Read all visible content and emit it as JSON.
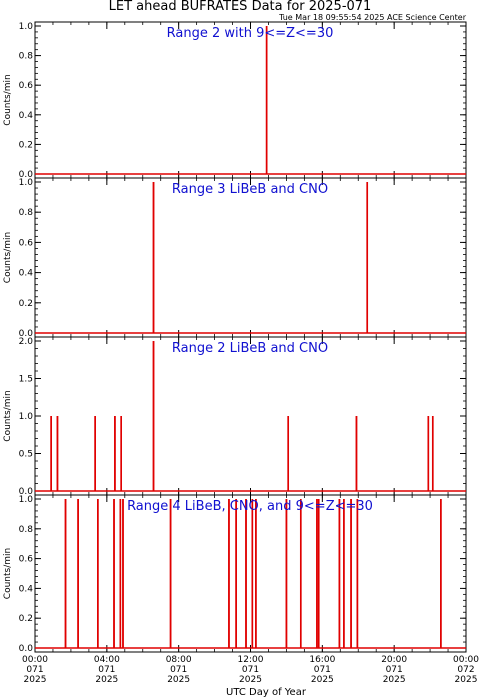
{
  "figure": {
    "title": "LET ahead BUFRATES Data for 2025-071",
    "timestamp": "Tue Mar 18 09:55:54 2025 ACE Science Center",
    "xlabel": "UTC Day of Year",
    "series_color": "#e00000",
    "title_color": "#1010d0"
  },
  "chart_data": [
    {
      "type": "line",
      "title": "Range 2 with 9<=Z<=30",
      "ylabel": "Counts/min",
      "xlim": [
        0,
        24
      ],
      "ylim": [
        0,
        1.0
      ],
      "yticks": [
        "0.0",
        "0.2",
        "0.4",
        "0.6",
        "0.8",
        "1.0"
      ],
      "x_unit": "hours UTC",
      "spikes": [
        {
          "x": 12.9,
          "y": 1.0
        }
      ]
    },
    {
      "type": "line",
      "title": "Range 3 LiBeB and CNO",
      "ylabel": "Counts/min",
      "xlim": [
        0,
        24
      ],
      "ylim": [
        0,
        1.0
      ],
      "yticks": [
        "0.0",
        "0.2",
        "0.4",
        "0.6",
        "0.8",
        "1.0"
      ],
      "x_unit": "hours UTC",
      "spikes": [
        {
          "x": 6.6,
          "y": 1.0
        },
        {
          "x": 18.5,
          "y": 1.0
        }
      ]
    },
    {
      "type": "line",
      "title": "Range 2 LiBeB and CNO",
      "ylabel": "Counts/min",
      "xlim": [
        0,
        24
      ],
      "ylim": [
        0,
        2.0
      ],
      "yticks": [
        "0.0",
        "0.5",
        "1.0",
        "1.5",
        "2.0"
      ],
      "x_unit": "hours UTC",
      "spikes": [
        {
          "x": 0.9,
          "y": 1.0
        },
        {
          "x": 1.25,
          "y": 1.0
        },
        {
          "x": 3.35,
          "y": 1.0
        },
        {
          "x": 4.45,
          "y": 1.0
        },
        {
          "x": 4.8,
          "y": 1.0
        },
        {
          "x": 6.6,
          "y": 2.0
        },
        {
          "x": 14.1,
          "y": 1.0
        },
        {
          "x": 17.9,
          "y": 1.0
        },
        {
          "x": 21.9,
          "y": 1.0
        },
        {
          "x": 22.15,
          "y": 1.0
        }
      ]
    },
    {
      "type": "line",
      "title": "Range 4 LiBeB, CNO, and 9<=Z<=30",
      "ylabel": "Counts/min",
      "xlim": [
        0,
        24
      ],
      "ylim": [
        0,
        1.0
      ],
      "yticks": [
        "0.0",
        "0.2",
        "0.4",
        "0.6",
        "0.8",
        "1.0"
      ],
      "x_unit": "hours UTC",
      "spikes": [
        {
          "x": 1.7,
          "y": 1.0
        },
        {
          "x": 2.4,
          "y": 1.0
        },
        {
          "x": 3.5,
          "y": 1.0
        },
        {
          "x": 4.4,
          "y": 1.0
        },
        {
          "x": 4.75,
          "y": 1.0
        },
        {
          "x": 4.9,
          "y": 1.0
        },
        {
          "x": 7.55,
          "y": 1.0
        },
        {
          "x": 10.8,
          "y": 1.0
        },
        {
          "x": 11.2,
          "y": 1.0
        },
        {
          "x": 11.75,
          "y": 1.0
        },
        {
          "x": 12.1,
          "y": 1.0
        },
        {
          "x": 12.3,
          "y": 1.0
        },
        {
          "x": 14.0,
          "y": 1.0
        },
        {
          "x": 14.8,
          "y": 1.0
        },
        {
          "x": 15.7,
          "y": 1.0
        },
        {
          "x": 15.8,
          "y": 1.0
        },
        {
          "x": 16.95,
          "y": 1.0
        },
        {
          "x": 17.2,
          "y": 1.0
        },
        {
          "x": 17.6,
          "y": 1.0
        },
        {
          "x": 17.95,
          "y": 1.0
        },
        {
          "x": 22.6,
          "y": 1.0
        }
      ]
    }
  ],
  "x_axis": {
    "ticks": [
      {
        "hour": 0,
        "time": "00:00",
        "doy": "071",
        "year": "2025"
      },
      {
        "hour": 4,
        "time": "04:00",
        "doy": "071",
        "year": "2025"
      },
      {
        "hour": 8,
        "time": "08:00",
        "doy": "071",
        "year": "2025"
      },
      {
        "hour": 12,
        "time": "12:00",
        "doy": "071",
        "year": "2025"
      },
      {
        "hour": 16,
        "time": "16:00",
        "doy": "071",
        "year": "2025"
      },
      {
        "hour": 20,
        "time": "20:00",
        "doy": "071",
        "year": "2025"
      },
      {
        "hour": 24,
        "time": "00:00",
        "doy": "072",
        "year": "2025"
      }
    ]
  }
}
